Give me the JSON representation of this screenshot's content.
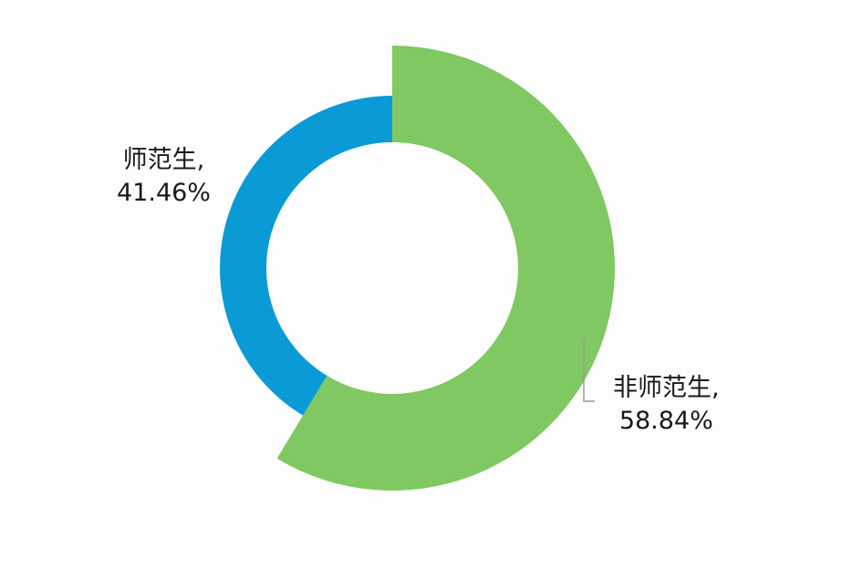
{
  "chart_data": {
    "type": "pie",
    "style": "donut",
    "slices": [
      {
        "label": "师范生",
        "value": 41.46,
        "value_text": "41.46%",
        "color": "#0a9bd6"
      },
      {
        "label": "非师范生",
        "value": 58.84,
        "value_text": "58.84%",
        "color": "#7fc862"
      }
    ],
    "leader_line_color": "#9a9a9a",
    "legend": "none"
  }
}
